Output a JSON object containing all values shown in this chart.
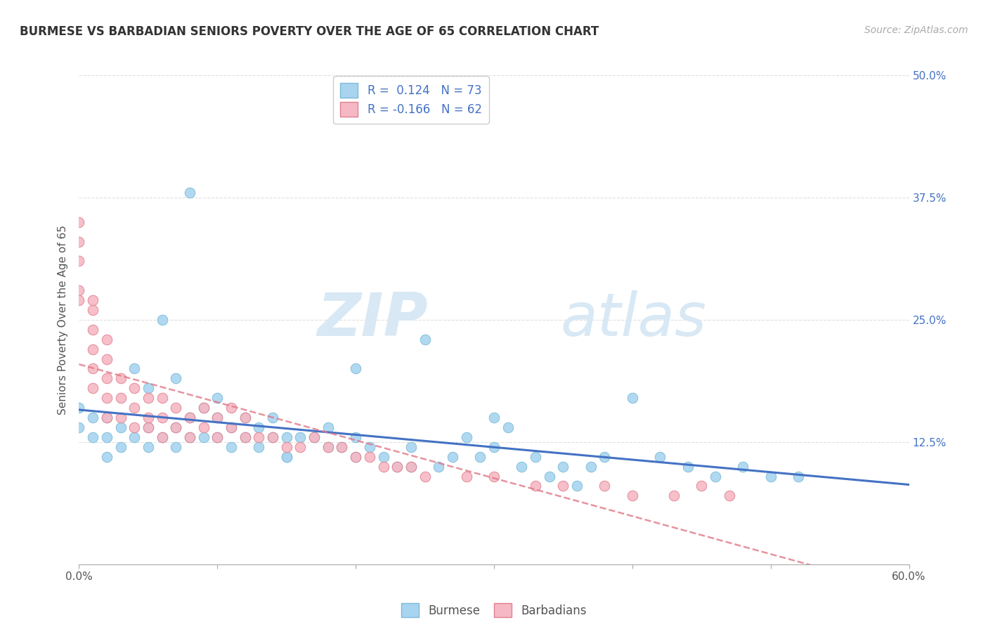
{
  "title": "BURMESE VS BARBADIAN SENIORS POVERTY OVER THE AGE OF 65 CORRELATION CHART",
  "source": "Source: ZipAtlas.com",
  "ylabel": "Seniors Poverty Over the Age of 65",
  "xmin": 0.0,
  "xmax": 0.6,
  "ymin": 0.0,
  "ymax": 0.5,
  "xtick_show": [
    0.0,
    0.6
  ],
  "xtick_labels_show": [
    "0.0%",
    "60.0%"
  ],
  "xtick_minor": [
    0.1,
    0.2,
    0.3,
    0.4,
    0.5
  ],
  "yticks": [
    0.0,
    0.125,
    0.25,
    0.375,
    0.5
  ],
  "ytick_labels_right": [
    "",
    "12.5%",
    "25.0%",
    "37.5%",
    "50.0%"
  ],
  "watermark_zip": "ZIP",
  "watermark_atlas": "atlas",
  "burmese_color": "#A8D4F0",
  "burmese_edge": "#7BBAD8",
  "barbadian_color": "#F5B8C4",
  "barbadian_edge": "#E08090",
  "trend_blue": "#4472C4",
  "trend_pink": "#E07888",
  "burmese_R": 0.124,
  "burmese_N": 73,
  "barbadian_R": -0.166,
  "barbadian_N": 62,
  "burmese_x": [
    0.0,
    0.0,
    0.01,
    0.01,
    0.02,
    0.02,
    0.02,
    0.03,
    0.03,
    0.04,
    0.04,
    0.05,
    0.05,
    0.05,
    0.06,
    0.06,
    0.07,
    0.07,
    0.07,
    0.08,
    0.08,
    0.08,
    0.09,
    0.09,
    0.1,
    0.1,
    0.1,
    0.11,
    0.11,
    0.12,
    0.12,
    0.13,
    0.13,
    0.14,
    0.14,
    0.15,
    0.15,
    0.16,
    0.17,
    0.18,
    0.18,
    0.19,
    0.2,
    0.2,
    0.21,
    0.22,
    0.23,
    0.24,
    0.25,
    0.27,
    0.28,
    0.29,
    0.3,
    0.31,
    0.33,
    0.35,
    0.37,
    0.38,
    0.4,
    0.42,
    0.44,
    0.46,
    0.48,
    0.5,
    0.52,
    0.24,
    0.26,
    0.32,
    0.34,
    0.36,
    0.3,
    0.2,
    0.15
  ],
  "burmese_y": [
    0.14,
    0.16,
    0.13,
    0.15,
    0.11,
    0.13,
    0.15,
    0.12,
    0.14,
    0.13,
    0.2,
    0.12,
    0.14,
    0.18,
    0.13,
    0.25,
    0.12,
    0.14,
    0.19,
    0.13,
    0.15,
    0.38,
    0.13,
    0.16,
    0.13,
    0.15,
    0.17,
    0.12,
    0.14,
    0.13,
    0.15,
    0.12,
    0.14,
    0.13,
    0.15,
    0.11,
    0.13,
    0.13,
    0.13,
    0.12,
    0.14,
    0.12,
    0.11,
    0.13,
    0.12,
    0.11,
    0.1,
    0.12,
    0.23,
    0.11,
    0.13,
    0.11,
    0.12,
    0.14,
    0.11,
    0.1,
    0.1,
    0.11,
    0.17,
    0.11,
    0.1,
    0.09,
    0.1,
    0.09,
    0.09,
    0.1,
    0.1,
    0.1,
    0.09,
    0.08,
    0.15,
    0.2,
    0.11
  ],
  "barbadian_x": [
    0.0,
    0.0,
    0.0,
    0.0,
    0.0,
    0.01,
    0.01,
    0.01,
    0.01,
    0.01,
    0.01,
    0.02,
    0.02,
    0.02,
    0.02,
    0.02,
    0.03,
    0.03,
    0.03,
    0.04,
    0.04,
    0.04,
    0.05,
    0.05,
    0.05,
    0.06,
    0.06,
    0.06,
    0.07,
    0.07,
    0.08,
    0.08,
    0.09,
    0.09,
    0.1,
    0.1,
    0.11,
    0.11,
    0.12,
    0.12,
    0.13,
    0.14,
    0.15,
    0.16,
    0.17,
    0.18,
    0.19,
    0.2,
    0.21,
    0.22,
    0.23,
    0.24,
    0.25,
    0.28,
    0.3,
    0.33,
    0.35,
    0.38,
    0.4,
    0.43,
    0.45,
    0.47
  ],
  "barbadian_y": [
    0.27,
    0.28,
    0.31,
    0.33,
    0.35,
    0.18,
    0.2,
    0.22,
    0.24,
    0.26,
    0.27,
    0.15,
    0.17,
    0.19,
    0.21,
    0.23,
    0.15,
    0.17,
    0.19,
    0.14,
    0.16,
    0.18,
    0.14,
    0.15,
    0.17,
    0.13,
    0.15,
    0.17,
    0.14,
    0.16,
    0.13,
    0.15,
    0.14,
    0.16,
    0.13,
    0.15,
    0.14,
    0.16,
    0.13,
    0.15,
    0.13,
    0.13,
    0.12,
    0.12,
    0.13,
    0.12,
    0.12,
    0.11,
    0.11,
    0.1,
    0.1,
    0.1,
    0.09,
    0.09,
    0.09,
    0.08,
    0.08,
    0.08,
    0.07,
    0.07,
    0.08,
    0.07
  ]
}
